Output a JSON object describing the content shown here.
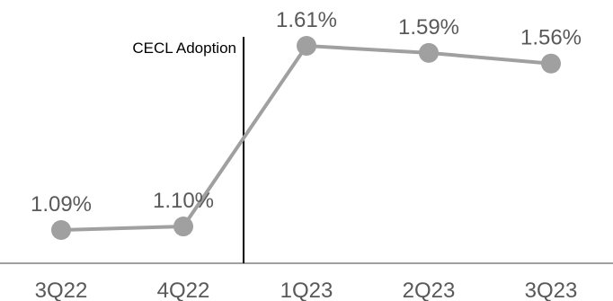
{
  "chart_data": {
    "type": "line",
    "title": "",
    "xlabel": "",
    "ylabel": "",
    "categories": [
      "3Q22",
      "4Q22",
      "1Q23",
      "2Q23",
      "3Q23"
    ],
    "series": [
      {
        "values": [
          1.09,
          1.1,
          1.61,
          1.59,
          1.56
        ],
        "labels": [
          "1.09%",
          "1.10%",
          "1.61%",
          "1.59%",
          "1.56%"
        ],
        "color": "#a0a0a0"
      }
    ],
    "ylim": [
      0.9,
      1.7
    ],
    "grid": false,
    "legend": "none",
    "annotations": [
      {
        "text": "CECL Adoption",
        "between": [
          "4Q22",
          "1Q23"
        ],
        "line_color": "#000000"
      }
    ],
    "axis_color": "#808080"
  }
}
